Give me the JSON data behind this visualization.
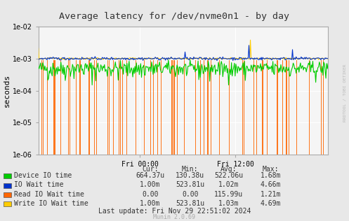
{
  "title": "Average latency for /dev/nvme0n1 - by day",
  "ylabel": "seconds",
  "xlabel_ticks": [
    "Fri 00:00",
    "Fri 12:00"
  ],
  "xlabel_tick_positions": [
    0.35,
    0.68
  ],
  "bg_color": "#e8e8e8",
  "plot_bg_color": "#f5f5f5",
  "grid_color": "#ffffff",
  "ymin": 1e-06,
  "ymax": 0.01,
  "legend": [
    {
      "label": "Device IO time",
      "color": "#00cc00"
    },
    {
      "label": "IO Wait time",
      "color": "#0033cc"
    },
    {
      "label": "Read IO Wait time",
      "color": "#ff6600"
    },
    {
      "label": "Write IO Wait time",
      "color": "#ffcc00"
    }
  ],
  "table_headers": [
    "Cur:",
    "Min:",
    "Avg:",
    "Max:"
  ],
  "table_rows": [
    [
      "664.37u",
      "130.38u",
      "522.06u",
      "1.68m"
    ],
    [
      "1.00m",
      "523.81u",
      "1.02m",
      "4.66m"
    ],
    [
      "0.00",
      "0.00",
      "115.99u",
      "1.21m"
    ],
    [
      "1.00m",
      "523.81u",
      "1.03m",
      "4.69m"
    ]
  ],
  "last_update": "Last update: Fri Nov 29 22:51:02 2024",
  "watermark": "Munin 2.0.69",
  "rrdtool_text": "RRDTOOL / TOBI OETIKER",
  "seed": 42
}
